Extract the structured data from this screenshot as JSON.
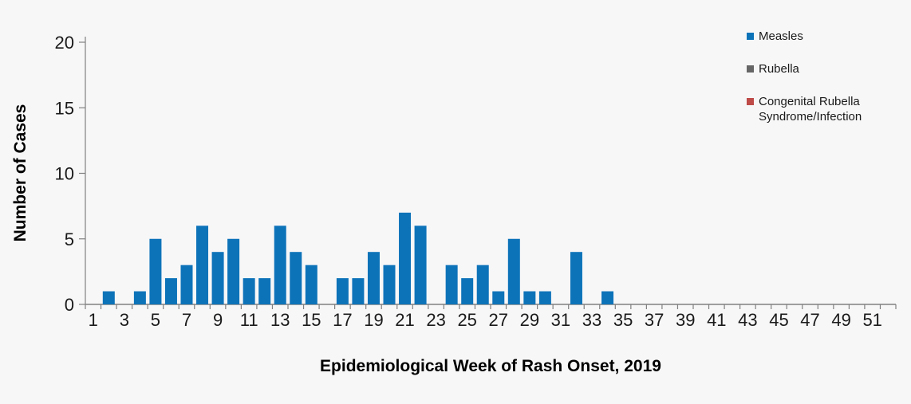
{
  "chart_data": {
    "type": "bar",
    "title": "",
    "xlabel": "Epidemiological Week of Rash Onset, 2019",
    "ylabel": "Number of Cases",
    "x": [
      1,
      2,
      3,
      4,
      5,
      6,
      7,
      8,
      9,
      10,
      11,
      12,
      13,
      14,
      15,
      16,
      17,
      18,
      19,
      20,
      21,
      22,
      23,
      24,
      25,
      26,
      27,
      28,
      29,
      30,
      31,
      32,
      33,
      34,
      35,
      36,
      37,
      38,
      39,
      40,
      41,
      42,
      43,
      44,
      45,
      46,
      47,
      48,
      49,
      50,
      51,
      52
    ],
    "x_tick_labels": [
      "1",
      "3",
      "5",
      "7",
      "9",
      "11",
      "13",
      "15",
      "17",
      "19",
      "21",
      "23",
      "25",
      "27",
      "29",
      "31",
      "33",
      "35",
      "37",
      "39",
      "41",
      "43",
      "45",
      "47",
      "49",
      "51"
    ],
    "ylim": [
      0,
      20
    ],
    "y_ticks": [
      0,
      5,
      10,
      15,
      20
    ],
    "grid": false,
    "legend_position": "top-right",
    "axis_color": "#808080",
    "series": [
      {
        "name": "Measles",
        "color": "#0d73b9",
        "values": [
          0,
          1,
          0,
          1,
          5,
          2,
          3,
          6,
          4,
          5,
          2,
          2,
          6,
          4,
          3,
          0,
          2,
          2,
          4,
          3,
          7,
          6,
          0,
          3,
          2,
          3,
          1,
          5,
          1,
          1,
          0,
          4,
          0,
          1,
          0,
          0,
          0,
          0,
          0,
          0,
          0,
          0,
          0,
          0,
          0,
          0,
          0,
          0,
          0,
          0,
          0,
          0
        ]
      },
      {
        "name": "Rubella",
        "color": "#666666",
        "values": [
          0,
          0,
          0,
          0,
          0,
          0,
          0,
          0,
          0,
          0,
          0,
          0,
          0,
          0,
          0,
          0,
          0,
          0,
          0,
          0,
          0,
          0,
          0,
          0,
          0,
          0,
          0,
          0,
          0,
          0,
          0,
          0,
          0,
          0,
          0,
          0,
          0,
          0,
          0,
          0,
          0,
          0,
          0,
          0,
          0,
          0,
          0,
          0,
          0,
          0,
          0,
          0
        ]
      },
      {
        "name": "Congenital Rubella Syndrome/Infection",
        "color": "#be4b48",
        "values": [
          0,
          0,
          0,
          0,
          0,
          0,
          0,
          0,
          0,
          0,
          0,
          0,
          0,
          0,
          0,
          0,
          0,
          0,
          0,
          0,
          0,
          0,
          0,
          0,
          0,
          0,
          0,
          0,
          0,
          0,
          0,
          0,
          0,
          0,
          0,
          0,
          0,
          0,
          0,
          0,
          0,
          0,
          0,
          0,
          0,
          0,
          0,
          0,
          0,
          0,
          0,
          0
        ]
      }
    ]
  }
}
